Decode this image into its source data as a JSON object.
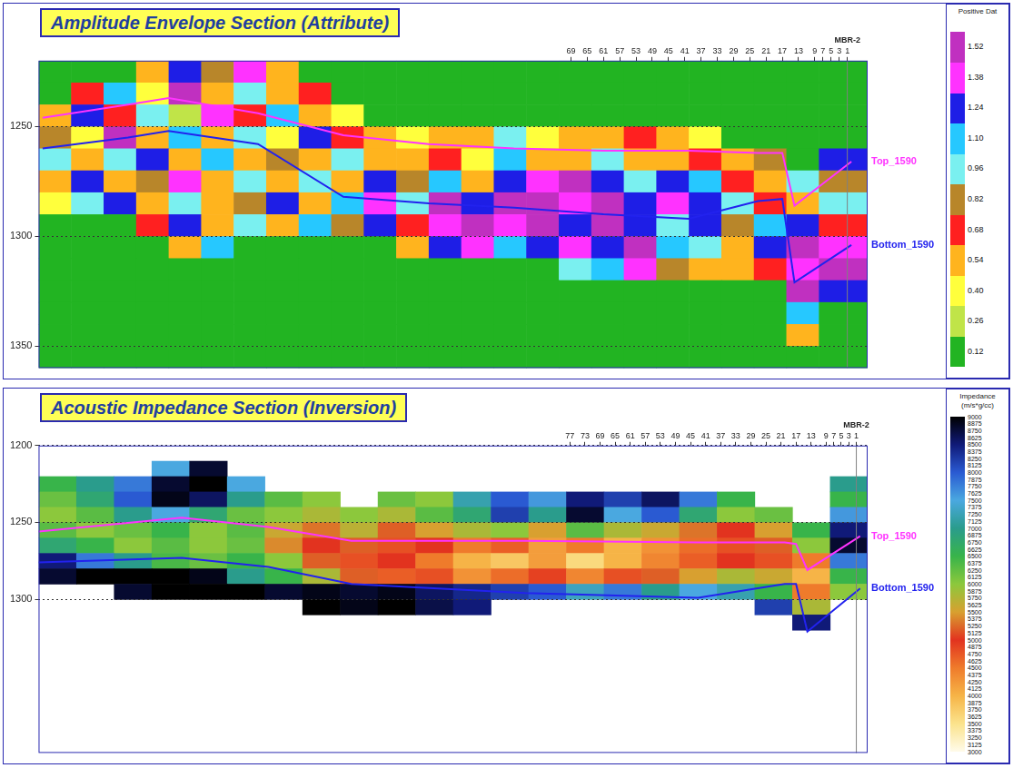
{
  "chart_data": [
    {
      "type": "heatmap",
      "title": "Amplitude Envelope Section (Attribute)",
      "xlim": [
        -4,
        200
      ],
      "xticks": [
        69,
        65,
        61,
        57,
        53,
        49,
        45,
        41,
        37,
        33,
        29,
        25,
        21,
        17,
        13,
        9,
        7,
        5,
        3,
        1
      ],
      "ylim": [
        1220,
        1360
      ],
      "yticks": [
        1250,
        1300,
        1350
      ],
      "grid": true,
      "cell_x": [
        200,
        192,
        184,
        176,
        168,
        160,
        152,
        144,
        136,
        128,
        120,
        112,
        104,
        96,
        88,
        80,
        72,
        64,
        56,
        48,
        40,
        32,
        24,
        16,
        8,
        -4
      ],
      "cell_y": [
        1220,
        1230,
        1240,
        1250,
        1260,
        1270,
        1280,
        1290,
        1300,
        1310,
        1320,
        1330,
        1340,
        1350,
        1360
      ],
      "cells": [
        [
          0,
          0,
          0,
          0.5,
          1.2,
          0.8,
          1.4,
          0.6,
          0,
          0,
          0,
          0,
          0,
          0,
          0,
          0,
          0,
          0,
          0,
          0,
          0,
          0,
          0,
          0,
          0
        ],
        [
          0,
          0.7,
          1.1,
          0.4,
          1.5,
          0.6,
          1.0,
          0.5,
          0.7,
          0,
          0,
          0,
          0,
          0,
          0,
          0,
          0,
          0,
          0,
          0,
          0,
          0,
          0,
          0,
          0
        ],
        [
          0.5,
          1.3,
          0.7,
          1.0,
          0.3,
          1.4,
          0.7,
          1.1,
          0.6,
          0.4,
          0,
          0,
          0,
          0,
          0,
          0,
          0,
          0,
          0,
          0,
          0,
          0,
          0,
          0,
          0
        ],
        [
          0.8,
          0.4,
          1.5,
          0.6,
          1.1,
          0.5,
          0.9,
          0.4,
          1.2,
          0.7,
          0.5,
          0.4,
          0.6,
          0.5,
          0.9,
          0.4,
          0.6,
          0.5,
          0.7,
          0.5,
          0.4,
          0,
          0,
          0,
          0
        ],
        [
          1.0,
          0.6,
          0.9,
          1.3,
          0.5,
          1.1,
          0.6,
          0.8,
          0.5,
          1.0,
          0.6,
          0.5,
          0.7,
          0.4,
          1.1,
          0.6,
          0.5,
          1.0,
          0.6,
          0.5,
          0.7,
          0.6,
          0.8,
          0,
          1.2
        ],
        [
          0.6,
          1.2,
          0.5,
          0.8,
          1.4,
          0.6,
          1.0,
          0.5,
          0.9,
          0.6,
          1.2,
          0.8,
          1.1,
          0.6,
          1.3,
          1.4,
          1.5,
          1.2,
          1.0,
          1.3,
          1.1,
          0.7,
          0.6,
          0.9,
          0.8
        ],
        [
          0.4,
          0.9,
          1.2,
          0.6,
          1.0,
          0.5,
          0.8,
          1.3,
          0.6,
          1.1,
          1.4,
          1.0,
          1.5,
          1.3,
          1.5,
          1.5,
          1.4,
          1.5,
          1.3,
          1.4,
          1.2,
          0.9,
          0.7,
          0.6,
          1.0
        ],
        [
          0,
          0,
          0,
          0.7,
          1.2,
          0.5,
          0.9,
          0.6,
          1.1,
          0.8,
          1.3,
          0.7,
          1.4,
          1.5,
          1.4,
          1.5,
          1.3,
          1.5,
          1.2,
          1.0,
          1.3,
          0.8,
          1.1,
          1.3,
          0.7
        ],
        [
          0,
          0,
          0,
          0,
          0.5,
          1.1,
          0,
          0,
          0,
          0,
          0,
          0.6,
          1.2,
          1.4,
          1.1,
          1.3,
          1.4,
          1.2,
          1.5,
          1.1,
          0.9,
          0.6,
          1.2,
          1.5,
          1.4
        ],
        [
          0,
          0,
          0,
          0,
          0,
          0,
          0,
          0,
          0,
          0,
          0,
          0,
          0,
          0,
          0,
          0,
          0.9,
          1.1,
          1.4,
          0.8,
          0.6,
          0.5,
          0.7,
          1.4,
          1.5
        ],
        [
          0,
          0,
          0,
          0,
          0,
          0,
          0,
          0,
          0,
          0,
          0,
          0,
          0,
          0,
          0,
          0,
          0,
          0,
          0,
          0,
          0,
          0,
          0,
          1.5,
          1.2
        ],
        [
          0,
          0,
          0,
          0,
          0,
          0,
          0,
          0,
          0,
          0,
          0,
          0,
          0,
          0,
          0,
          0,
          0,
          0,
          0,
          0,
          0,
          0,
          0,
          1.1,
          0
        ],
        [
          0,
          0,
          0,
          0,
          0,
          0,
          0,
          0,
          0,
          0,
          0,
          0,
          0,
          0,
          0,
          0,
          0,
          0,
          0,
          0,
          0,
          0,
          0,
          0.5,
          0
        ],
        [
          0,
          0,
          0,
          0,
          0,
          0,
          0,
          0,
          0,
          0,
          0,
          0,
          0,
          0,
          0,
          0,
          0,
          0,
          0,
          0,
          0,
          0,
          0,
          0,
          0
        ]
      ],
      "colorbar": {
        "title": "Positive Dat",
        "range": [
          0.05,
          1.59
        ],
        "ticks": [
          0.12,
          0.26,
          {
            "value": 0.4,
            "label": "0.40"
          },
          0.54,
          0.68,
          0.82,
          0.96,
          {
            "value": 1.1,
            "label": "1.10"
          },
          1.24,
          1.38,
          1.52
        ],
        "colors": [
          "#22b422",
          "#c0e448",
          "#ffff3c",
          "#ffb41e",
          "#ff2020",
          "#b8862a",
          "#7af0f0",
          "#26c8ff",
          "#1e1ee6",
          "#ff32ff",
          "#c030c0"
        ]
      },
      "series": [
        {
          "name": "Top_1590",
          "color": "#ff33ff",
          "x": [
            199,
            178,
            168,
            146,
            125,
            104,
            83,
            61,
            40,
            23,
            17,
            14,
            0
          ],
          "values": [
            1246,
            1240,
            1237,
            1244,
            1254,
            1258,
            1260,
            1261,
            1261,
            1262,
            1262,
            1286,
            1266
          ]
        },
        {
          "name": "Bottom_1590",
          "color": "#2222ee",
          "x": [
            199,
            178,
            168,
            146,
            125,
            104,
            83,
            61,
            40,
            23,
            17,
            14,
            0
          ],
          "values": [
            1260,
            1255,
            1252,
            1258,
            1282,
            1285,
            1287,
            1290,
            1292,
            1284,
            1283,
            1321,
            1304
          ]
        }
      ],
      "annotations": [
        {
          "text": "MBR-2",
          "x": 1
        }
      ]
    },
    {
      "type": "heatmap",
      "title": "Acoustic Impedance Section (Inversion)",
      "xlim": [
        -2,
        218
      ],
      "xticks": [
        77,
        73,
        69,
        65,
        61,
        57,
        53,
        49,
        45,
        41,
        37,
        33,
        29,
        25,
        21,
        17,
        13,
        9,
        7,
        5,
        3,
        1
      ],
      "ylim": [
        1200,
        1400
      ],
      "yticks": [
        1200,
        1250,
        1300
      ],
      "grid": true,
      "cell_x": [
        218,
        208,
        198,
        188,
        178,
        168,
        158,
        148,
        138,
        128,
        118,
        108,
        98,
        88,
        78,
        68,
        58,
        48,
        38,
        28,
        18,
        8,
        -2
      ],
      "cell_y": [
        1210,
        1220,
        1230,
        1240,
        1250,
        1260,
        1270,
        1280,
        1290,
        1300,
        1310,
        1320
      ],
      "cells": [
        [
          null,
          null,
          null,
          7500,
          8800,
          null,
          null,
          null,
          null,
          null,
          null,
          null,
          null,
          null,
          null,
          null,
          null,
          null,
          null,
          null,
          null,
          null
        ],
        [
          6500,
          7000,
          7800,
          8800,
          9000,
          7500,
          null,
          null,
          null,
          null,
          null,
          null,
          null,
          null,
          null,
          null,
          null,
          null,
          null,
          null,
          null,
          7000
        ],
        [
          6200,
          6800,
          8000,
          8900,
          8600,
          7000,
          6300,
          6000,
          null,
          6200,
          6000,
          7200,
          8000,
          7600,
          8500,
          8200,
          8600,
          7800,
          6500,
          null,
          null,
          6500
        ],
        [
          6000,
          6300,
          7000,
          7500,
          6800,
          6200,
          6000,
          5800,
          6000,
          5800,
          6300,
          6800,
          8200,
          7000,
          8800,
          7500,
          8000,
          6800,
          6000,
          6200,
          null,
          7600
        ],
        [
          6300,
          6000,
          6200,
          6500,
          6000,
          6300,
          5600,
          5300,
          5700,
          5200,
          5500,
          5800,
          6000,
          5500,
          6300,
          5800,
          5600,
          5300,
          5000,
          5500,
          6500,
          8500
        ],
        [
          6800,
          6500,
          6000,
          6300,
          6000,
          6200,
          5400,
          5000,
          5200,
          4800,
          5000,
          4500,
          4700,
          4200,
          4500,
          4000,
          4300,
          4600,
          4800,
          5200,
          6000,
          8800
        ],
        [
          8500,
          7800,
          7000,
          6400,
          6200,
          6500,
          6000,
          5200,
          4800,
          5000,
          4500,
          4000,
          3800,
          4200,
          3600,
          4000,
          4400,
          4700,
          5000,
          4800,
          4500,
          7800
        ],
        [
          8800,
          9000,
          9000,
          9000,
          8900,
          7000,
          6500,
          5800,
          5200,
          4700,
          4800,
          4300,
          4600,
          4900,
          4400,
          4800,
          5200,
          5500,
          5800,
          5600,
          4000,
          6500
        ],
        [
          null,
          null,
          8800,
          9000,
          9000,
          9000,
          8800,
          8900,
          8800,
          8900,
          8600,
          8400,
          8200,
          8000,
          7300,
          7800,
          7000,
          7500,
          7200,
          6500,
          4500,
          6000
        ],
        [
          null,
          null,
          null,
          null,
          null,
          null,
          null,
          9000,
          8900,
          9000,
          8700,
          8500,
          null,
          null,
          null,
          null,
          null,
          null,
          null,
          8200,
          5800,
          null
        ],
        [
          null,
          null,
          null,
          null,
          null,
          null,
          null,
          null,
          null,
          null,
          null,
          null,
          null,
          null,
          null,
          null,
          null,
          null,
          null,
          null,
          8500,
          null
        ]
      ],
      "colorbar": {
        "title": "Impedance (m/s*g/cc)",
        "range": [
          3000,
          9000
        ],
        "ticks": [
          3000,
          3125,
          3250,
          3375,
          3500,
          3625,
          3750,
          3875,
          4000,
          4125,
          4250,
          4375,
          4500,
          4625,
          4750,
          4875,
          5000,
          5125,
          5250,
          5375,
          5500,
          5625,
          5750,
          5875,
          6000,
          6125,
          6250,
          6375,
          6500,
          6625,
          6750,
          6875,
          7000,
          7125,
          7250,
          7375,
          7500,
          7625,
          7750,
          7875,
          8000,
          8125,
          8250,
          8375,
          8500,
          8625,
          8750,
          8875,
          9000
        ],
        "colors": [
          "#fffbea",
          "#fbe38c",
          "#f6b447",
          "#ef7b2b",
          "#e2331f",
          "#d8a030",
          "#8cc83c",
          "#38b44a",
          "#2a9c8c",
          "#4aa8e0",
          "#2a5ad2",
          "#101a78",
          "#000000"
        ]
      },
      "series": [
        {
          "name": "Top_1590",
          "color": "#ff33ff",
          "x": [
            218,
            180,
            157,
            135,
            89,
            43,
            20,
            17,
            14,
            0
          ],
          "values": [
            1256,
            1247,
            1253,
            1262,
            1262,
            1263,
            1263,
            1264,
            1281,
            1259
          ]
        },
        {
          "name": "Bottom_1590",
          "color": "#2222ee",
          "x": [
            218,
            180,
            157,
            135,
            89,
            43,
            20,
            17,
            14,
            0
          ],
          "values": [
            1276,
            1273,
            1279,
            1290,
            1296,
            1299,
            1290,
            1290,
            1321,
            1293
          ]
        }
      ],
      "annotations": [
        {
          "text": "MBR-2",
          "x": 1
        }
      ]
    }
  ]
}
